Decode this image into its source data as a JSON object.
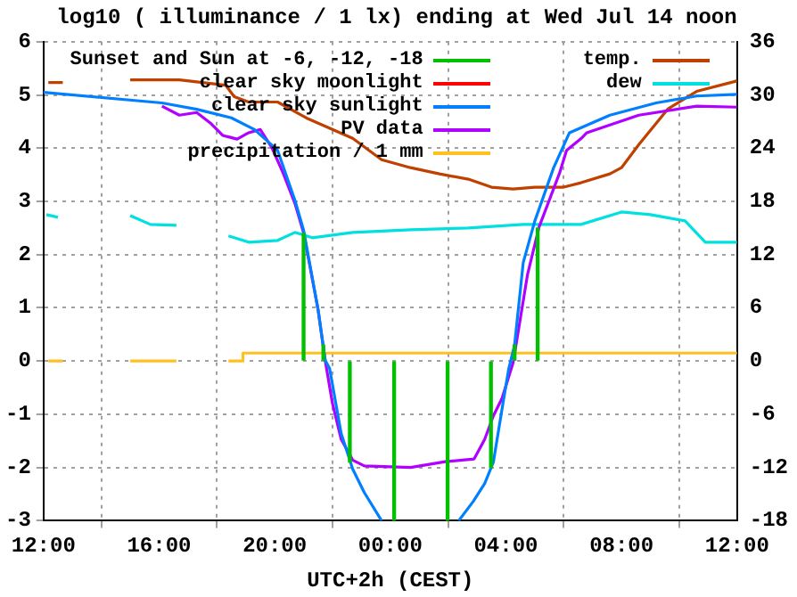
{
  "chart_data": {
    "type": "line",
    "title": "log10 ( illuminance / 1 lx) ending at Wed Jul 14 noon",
    "xlabel": "UTC+2h (CEST)",
    "xlim": [
      "--07-13T12:00",
      "--07-14T12:00"
    ],
    "xticks": [
      {
        "value": "--07-13T12:00",
        "label": "12:00"
      },
      {
        "value": "--07-13T16:00",
        "label": "16:00"
      },
      {
        "value": "--07-13T20:00",
        "label": "20:00"
      },
      {
        "value": "--07-14T00:00",
        "label": "00:00"
      },
      {
        "value": "--07-14T04:00",
        "label": "04:00"
      },
      {
        "value": "--07-14T08:00",
        "label": "08:00"
      },
      {
        "value": "--07-14T12:00",
        "label": "12:00"
      }
    ],
    "ylim": [
      -3,
      6
    ],
    "yticks": [
      -3,
      -2,
      -1,
      0,
      1,
      2,
      3,
      4,
      5,
      6
    ],
    "y2lim": [
      -18,
      36
    ],
    "y2ticks": [
      -18,
      -12,
      -6,
      0,
      6,
      12,
      18,
      24,
      30,
      36
    ],
    "grid": true,
    "legend": "top",
    "series": [
      {
        "name": "Sunset and Sun at -6, -12, -18",
        "type": "bar",
        "color": "#00c000",
        "x": [
          "--07-13T21:00",
          "--07-13T21:41",
          "--07-13T22:36",
          "--07-14T00:08",
          "--07-14T01:59",
          "--07-14T03:29",
          "--07-14T04:18",
          "--07-14T05:06"
        ],
        "values": [
          2.4,
          0.3,
          -1.9,
          -3,
          -3,
          -2,
          0.3,
          2.5
        ]
      },
      {
        "name": "clear sky moonlight",
        "color": "#ff0000"
      },
      {
        "name": "clear sky sunlight",
        "color": "#0080ff",
        "x": [
          "--07-13T12:00",
          "--07-13T16:06",
          "--07-13T17:18",
          "--07-13T18:30",
          "--07-13T19:18",
          "--07-13T20:06",
          "--07-13T20:42",
          "--07-13T21:00",
          "--07-13T21:30",
          "--07-13T21:45",
          "--07-13T21:54",
          "--07-13T22:18",
          "--07-13T22:42",
          "--07-13T23:06",
          "--07-13T23:42",
          "--07-14T01:00",
          "--07-14T02:22",
          "--07-14T02:52",
          "--07-14T03:16",
          "--07-14T03:34",
          "--07-14T03:52",
          "--07-14T04:06",
          "--07-14T04:18",
          "--07-14T04:36",
          "--07-14T05:00",
          "--07-14T05:39",
          "--07-14T06:12",
          "--07-14T07:36",
          "--07-14T09:12",
          "--07-14T10:36",
          "--07-14T12:00"
        ],
        "values": [
          5.05,
          4.85,
          4.73,
          4.57,
          4.35,
          3.96,
          3.02,
          2.46,
          0.97,
          0.01,
          -0.14,
          -1.36,
          -2.03,
          -2.47,
          -3,
          null,
          -3,
          -2.64,
          -2.3,
          -1.9,
          -0.9,
          -0.14,
          0.3,
          1.85,
          2.63,
          3.63,
          4.29,
          4.62,
          4.85,
          4.98,
          5.01
        ]
      },
      {
        "name": "PV data",
        "color": "#b000ff",
        "x": [
          "--07-13T16:06",
          "--07-13T16:42",
          "--07-13T17:18",
          "--07-13T17:48",
          "--07-13T18:12",
          "--07-13T18:42",
          "--07-13T19:06",
          "--07-13T19:30",
          "--07-13T19:54",
          "--07-13T20:18",
          "--07-13T20:42",
          "--07-13T21:00",
          "--07-13T21:30",
          "--07-13T21:45",
          "--07-13T22:00",
          "--07-13T22:18",
          "--07-13T22:42",
          "--07-13T23:06",
          "--07-14T00:42",
          "--07-14T01:54",
          "--07-14T02:54",
          "--07-14T03:16",
          "--07-14T03:34",
          "--07-14T03:52",
          "--07-14T04:15",
          "--07-14T04:27",
          "--07-14T04:45",
          "--07-14T05:09",
          "--07-14T05:51",
          "--07-14T06:06",
          "--07-14T06:36",
          "--07-14T06:48",
          "--07-14T08:36",
          "--07-14T10:36",
          "--07-14T12:00"
        ],
        "values": [
          4.79,
          4.62,
          4.67,
          4.46,
          4.24,
          4.17,
          4.29,
          4.35,
          4.01,
          3.52,
          2.96,
          2.41,
          0.97,
          0,
          -0.8,
          -1.47,
          -1.86,
          -1.97,
          -2.0,
          -1.89,
          -1.84,
          -1.47,
          -1.03,
          -0.7,
          -0.03,
          0.63,
          1.63,
          2.52,
          3.52,
          3.96,
          4.18,
          4.29,
          4.62,
          4.79,
          4.77
        ]
      },
      {
        "name": "precipitation / 1 mm",
        "color": "#ffc020",
        "x": [
          "--07-13T12:10",
          "--07-13T12:40",
          "--07-13T13:00",
          "--07-13T15:00",
          "--07-13T16:36",
          "--07-13T17:00",
          "--07-13T18:24",
          "--07-13T18:54",
          "--07-13T18:54",
          "--07-14T12:00"
        ],
        "values": [
          0,
          0,
          null,
          0,
          0,
          null,
          0,
          0,
          0.15,
          0.15
        ]
      },
      {
        "name": "temp.",
        "color": "#c04000",
        "axis": "y2",
        "x": [
          "--07-13T12:10",
          "--07-13T12:40",
          "--07-13T13:00",
          "--07-13T15:00",
          "--07-13T16:42",
          "--07-13T18:18",
          "--07-13T18:36",
          "--07-13T19:06",
          "--07-13T20:06",
          "--07-13T21:06",
          "--07-13T22:42",
          "--07-13T23:42",
          "--07-14T00:42",
          "--07-14T01:42",
          "--07-14T02:42",
          "--07-14T03:30",
          "--07-14T04:15",
          "--07-14T05:00",
          "--07-14T06:00",
          "--07-14T06:36",
          "--07-14T07:36",
          "--07-14T08:00",
          "--07-14T08:36",
          "--07-14T09:36",
          "--07-14T10:36",
          "--07-14T11:54",
          "--07-14T12:00"
        ],
        "values": [
          31.4,
          31.4,
          null,
          31.7,
          31.7,
          31.1,
          29.8,
          29.2,
          29.2,
          27.4,
          25.1,
          22.7,
          21.8,
          21.1,
          20.5,
          19.6,
          19.4,
          19.6,
          19.6,
          20.1,
          21.1,
          21.8,
          24.4,
          28.4,
          30.4,
          31.5,
          31.6
        ]
      },
      {
        "name": "dew",
        "color": "#00e0e0",
        "axis": "y2",
        "x": [
          "--07-13T12:06",
          "--07-13T12:30",
          "--07-13T13:00",
          "--07-13T15:00",
          "--07-13T15:42",
          "--07-13T16:36",
          "--07-13T17:30",
          "--07-13T18:24",
          "--07-13T19:06",
          "--07-13T20:06",
          "--07-13T20:42",
          "--07-13T21:18",
          "--07-13T22:42",
          "--07-14T00:42",
          "--07-14T02:42",
          "--07-14T04:36",
          "--07-14T06:36",
          "--07-14T08:00",
          "--07-14T09:00",
          "--07-14T10:12",
          "--07-14T10:54",
          "--07-14T11:54",
          "--07-14T12:00"
        ],
        "values": [
          16.5,
          16.2,
          null,
          16.4,
          15.4,
          15.3,
          null,
          14.1,
          13.4,
          13.6,
          14.5,
          13.9,
          14.5,
          14.8,
          15.0,
          15.4,
          15.4,
          16.8,
          16.5,
          15.8,
          13.4,
          13.4,
          13.4
        ]
      }
    ]
  }
}
